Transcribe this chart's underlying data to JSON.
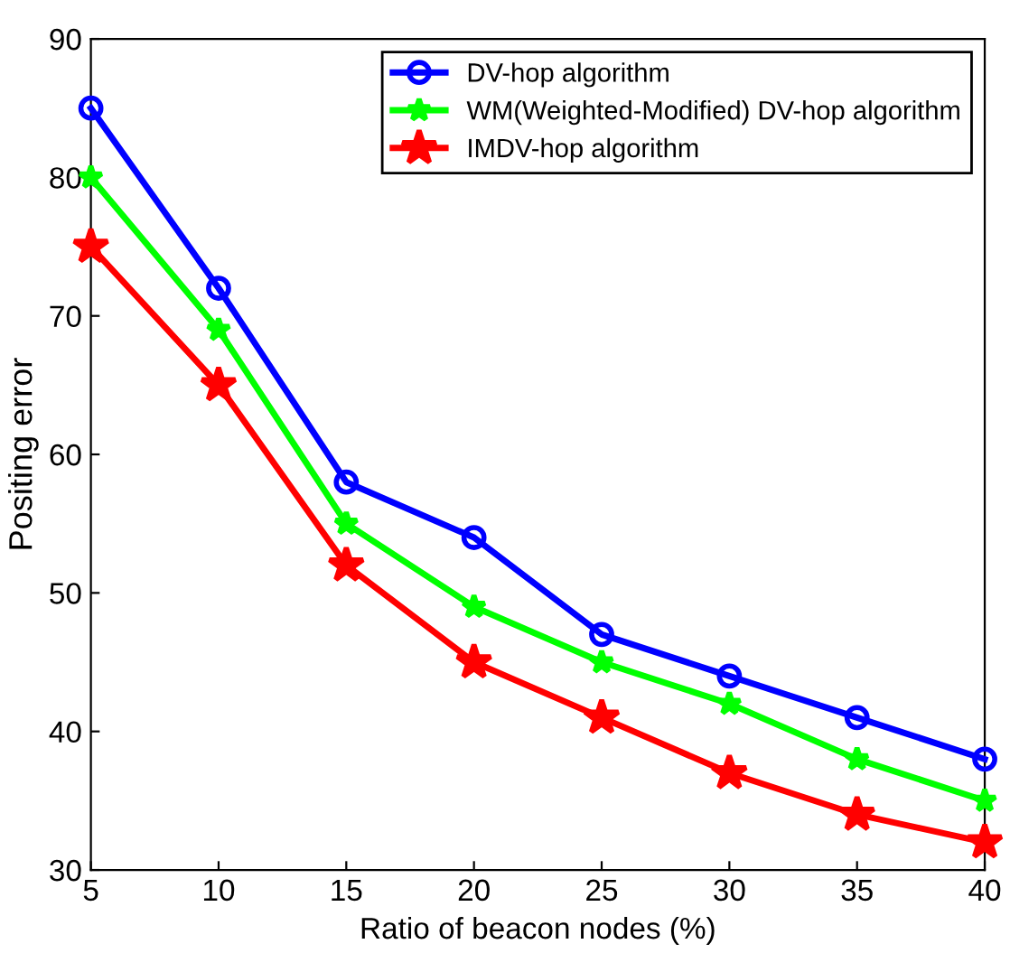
{
  "chart_data": {
    "type": "line",
    "xlabel": "Ratio of beacon nodes (%)",
    "ylabel": "Positing error",
    "x": [
      5,
      10,
      15,
      20,
      25,
      30,
      35,
      40
    ],
    "series": [
      {
        "name": "DV-hop algorithm",
        "color": "#0000ff",
        "marker": "circle",
        "values": [
          85,
          72,
          58,
          54,
          47,
          44,
          41,
          38
        ]
      },
      {
        "name": "WM(Weighted-Modified) DV-hop algorithm",
        "color": "#00ff00",
        "marker": "star",
        "values": [
          80,
          69,
          55,
          49,
          45,
          42,
          38,
          35
        ]
      },
      {
        "name": "IMDV-hop algorithm",
        "color": "#ff0000",
        "marker": "star",
        "values": [
          75,
          65,
          52,
          45,
          41,
          37,
          34,
          32
        ]
      }
    ],
    "xlim": [
      5,
      40
    ],
    "ylim": [
      30,
      90
    ],
    "xticks": [
      5,
      10,
      15,
      20,
      25,
      30,
      35,
      40
    ],
    "yticks": [
      30,
      40,
      50,
      60,
      70,
      80,
      90
    ],
    "grid": false,
    "legend": "top right",
    "line_style": "solid"
  }
}
